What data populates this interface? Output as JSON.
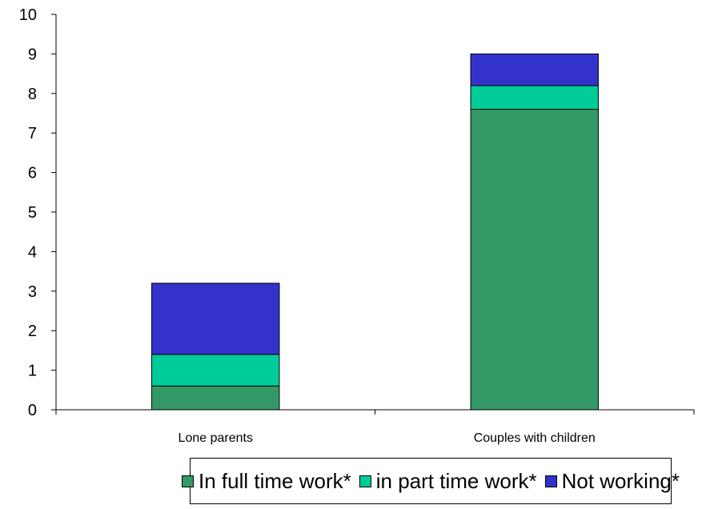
{
  "chart_data": {
    "type": "bar",
    "stacked": true,
    "categories": [
      "Lone parents",
      "Couples with children"
    ],
    "series": [
      {
        "name": "In full time work*",
        "values": [
          0.6,
          7.6
        ],
        "color": "#339966"
      },
      {
        "name": "in part time work*",
        "values": [
          0.8,
          0.6
        ],
        "color": "#00cc99"
      },
      {
        "name": "Not working*",
        "values": [
          1.8,
          0.8
        ],
        "color": "#3333cc"
      }
    ],
    "ylim": [
      0,
      10
    ],
    "yticks": [
      "0",
      "1",
      "2",
      "3",
      "4",
      "5",
      "6",
      "7",
      "8",
      "9",
      "10"
    ],
    "grid": false,
    "legend_position": "bottom"
  }
}
